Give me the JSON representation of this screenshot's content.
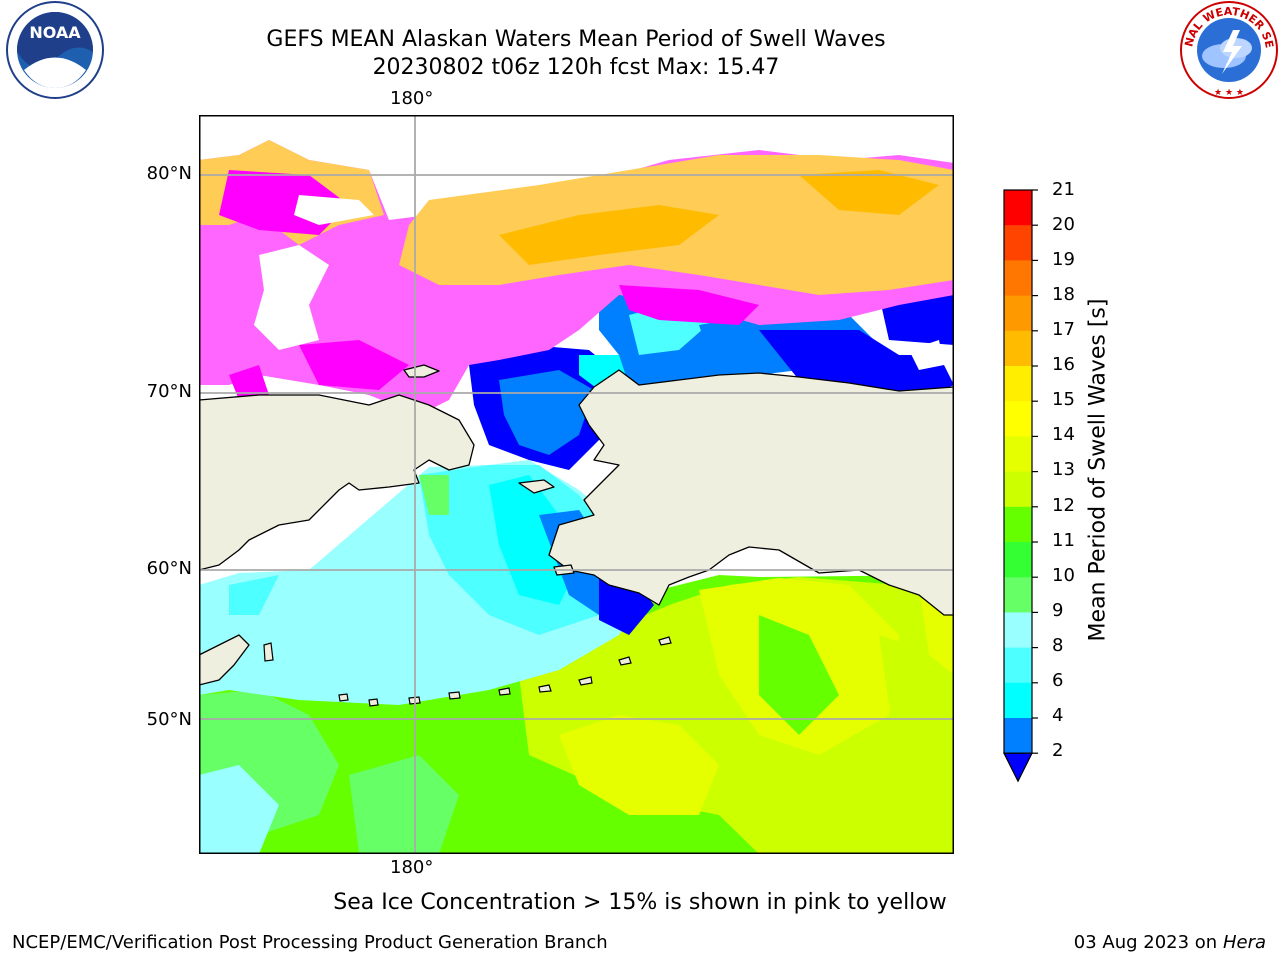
{
  "header": {
    "title_line1": "GEFS MEAN Alaskan Waters Mean Period of Swell Waves",
    "title_line2": "20230802 t06z 120h fcst   Max: 15.47"
  },
  "logos": {
    "left": {
      "name": "noaa-logo",
      "text": "NOAA"
    },
    "right": {
      "name": "nws-logo",
      "text": "NATIONAL WEATHER SERVICE"
    }
  },
  "map": {
    "lon_label_top": "180°",
    "lon_label_bottom": "180°",
    "lat_labels": [
      "80°N",
      "70°N",
      "60°N",
      "50°N"
    ]
  },
  "colorbar": {
    "title": "Mean Period of Swell Waves [s]",
    "ticks": [
      "21",
      "20",
      "19",
      "18",
      "17",
      "16",
      "15",
      "14",
      "13",
      "12",
      "11",
      "10",
      "9",
      "8",
      "6",
      "4",
      "2"
    ],
    "colors": {
      "below_min": "#0000ff",
      "c2_4": "#0080ff",
      "c4_6": "#00ffff",
      "c6_8": "#4dffff",
      "c8_9": "#99ffff",
      "c9_10": "#66ff66",
      "c10_11": "#33ff33",
      "c11_12": "#66ff00",
      "c12_13": "#ccff00",
      "c13_14": "#e6ff00",
      "c14_15": "#ffff00",
      "c15_16": "#ffee00",
      "c16_17": "#ffbb00",
      "c17_18": "#ff9900",
      "c18_19": "#ff7700",
      "c19_20": "#ff4400",
      "c20_21": "#ff0000"
    }
  },
  "ice_colors": {
    "pink": "#ff66ff",
    "magenta": "#ff00ff",
    "orange": "#ffcc55"
  },
  "land_color": "#efefdf",
  "note": "Sea Ice Concentration > 15% is shown in pink to yellow",
  "footer": {
    "left": "NCEP/EMC/Verification Post Processing Product Generation Branch",
    "right_date": "03 Aug 2023 on",
    "right_host": "Hera"
  }
}
